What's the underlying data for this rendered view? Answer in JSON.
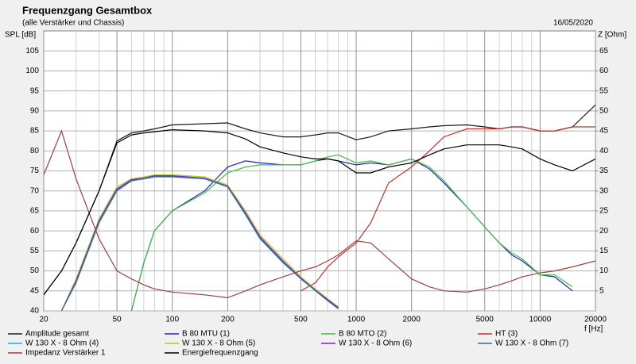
{
  "chart_data": {
    "type": "line",
    "title": "Frequenzgang Gesamtbox",
    "subtitle": "(alle Verstärker und Chassis)",
    "date": "16/05/2020",
    "ylabel": "SPL [dB]",
    "y2label": "Z [Ohm]",
    "xlabel": "f [Hz]",
    "xscale": "log",
    "grid": true,
    "xlim": [
      20,
      20000
    ],
    "xticks": [
      20,
      50,
      100,
      200,
      500,
      1000,
      2000,
      5000,
      10000,
      20000
    ],
    "xminorticks": [
      30,
      40,
      60,
      70,
      80,
      90,
      300,
      400,
      600,
      700,
      800,
      900,
      3000,
      4000,
      6000,
      7000,
      8000,
      9000
    ],
    "ylim": [
      40,
      110
    ],
    "yticks": [
      40,
      45,
      50,
      55,
      60,
      65,
      70,
      75,
      80,
      85,
      90,
      95,
      100,
      105
    ],
    "y2lim": [
      0,
      70
    ],
    "y2ticks": [
      5,
      10,
      15,
      20,
      25,
      30,
      35,
      40,
      45,
      50,
      55,
      60,
      65
    ],
    "x": [
      20,
      25,
      30,
      40,
      50,
      60,
      70,
      80,
      100,
      150,
      200,
      250,
      300,
      400,
      500,
      600,
      700,
      800,
      1000,
      1200,
      1500,
      2000,
      2500,
      3000,
      4000,
      5000,
      6000,
      7000,
      8000,
      10000,
      12000,
      15000,
      20000
    ],
    "series": [
      {
        "name": "Amplitude gesamt",
        "color": "#1a1a1a",
        "values": [
          44,
          50,
          57,
          70,
          82.5,
          84.5,
          85,
          85.5,
          86.5,
          86.8,
          87,
          85.5,
          84.5,
          83.5,
          83.5,
          84,
          84.5,
          84.5,
          82.8,
          83.5,
          85,
          85.5,
          86,
          86.3,
          86.5,
          86,
          85.5,
          86,
          86,
          85,
          85,
          86,
          91.5
        ]
      },
      {
        "name": "B 80 MTU (1)",
        "color": "#2020c0",
        "values": [
          null,
          null,
          null,
          null,
          null,
          40,
          52,
          60,
          65,
          70,
          76,
          77.5,
          77,
          76.5,
          76.5,
          77.5,
          78,
          77.5,
          76.5,
          77,
          76.5,
          78,
          75.5,
          72,
          66,
          61,
          57,
          54,
          52.5,
          49,
          48.5,
          45,
          null
        ]
      },
      {
        "name": "B 80 MTO (2)",
        "color": "#40c040",
        "values": [
          null,
          null,
          null,
          null,
          null,
          40,
          52,
          60,
          65,
          69.5,
          74.5,
          76,
          76.5,
          76.5,
          76.5,
          77.5,
          78.5,
          79,
          77,
          77.5,
          76.5,
          78,
          76,
          72.5,
          66,
          61,
          57,
          54.5,
          53,
          49,
          49,
          46,
          null
        ]
      },
      {
        "name": "HT (3)",
        "color": "#c03030",
        "values": [
          null,
          null,
          null,
          null,
          null,
          null,
          null,
          null,
          null,
          null,
          null,
          null,
          null,
          null,
          45,
          47,
          51,
          53.5,
          57,
          62,
          72,
          76,
          80,
          83.5,
          85.5,
          85.5,
          85.5,
          86,
          86,
          85,
          85,
          86,
          86
        ]
      },
      {
        "name": "W 130 X - 8 Ohm (4)",
        "color": "#20b0c0",
        "values": [
          null,
          40,
          47,
          62,
          70,
          72.5,
          73,
          73.5,
          73.5,
          73,
          71,
          64,
          58,
          52,
          48,
          45,
          42.5,
          40.5,
          null,
          null,
          null,
          null,
          null,
          null,
          null,
          null,
          null,
          null,
          null,
          null,
          null,
          null,
          null
        ]
      },
      {
        "name": "W 130 X - 8 Ohm (5)",
        "color": "#c0c020",
        "values": [
          null,
          40,
          48,
          63,
          71,
          73,
          73.5,
          74,
          74,
          73.5,
          71.5,
          65,
          59,
          53,
          48.5,
          45.5,
          43,
          41,
          null,
          null,
          null,
          null,
          null,
          null,
          null,
          null,
          null,
          null,
          null,
          null,
          null,
          null,
          null
        ]
      },
      {
        "name": "W 130 X - 8 Ohm (6)",
        "color": "#8020c0",
        "values": [
          null,
          40,
          47.5,
          62.5,
          70.5,
          72.8,
          73.2,
          73.8,
          73.8,
          73.2,
          71.2,
          64.5,
          58.5,
          52.5,
          48.2,
          45.2,
          42.8,
          40.8,
          null,
          null,
          null,
          null,
          null,
          null,
          null,
          null,
          null,
          null,
          null,
          null,
          null,
          null,
          null
        ]
      },
      {
        "name": "W 130 X - 8 Ohm (7)",
        "color": "#4060a0",
        "values": [
          null,
          40,
          47.2,
          62.2,
          70.2,
          72.6,
          73.1,
          73.6,
          73.6,
          73.1,
          71.1,
          64.2,
          58.2,
          52.2,
          48.1,
          45.1,
          42.6,
          40.6,
          null,
          null,
          null,
          null,
          null,
          null,
          null,
          null,
          null,
          null,
          null,
          null,
          null,
          null,
          null
        ]
      },
      {
        "name": "Impedanz Verstärker 1",
        "color": "#a04040",
        "axis": "y2",
        "values": [
          34,
          45,
          33,
          18,
          10,
          8,
          6.5,
          5.5,
          4.7,
          4,
          3.3,
          5,
          6.5,
          8.5,
          10,
          11,
          12.5,
          14,
          17.5,
          17,
          13,
          8,
          6,
          5,
          4.7,
          5.5,
          6.5,
          7.5,
          8.5,
          9.5,
          10,
          11,
          12.5
        ]
      },
      {
        "name": "Energiefrequenzgang",
        "color": "#000000",
        "values": [
          44,
          50,
          57,
          70,
          82,
          84,
          84.5,
          84.8,
          85.3,
          85,
          84.5,
          83,
          81,
          79.5,
          78.5,
          78,
          78,
          77.5,
          74.5,
          74.5,
          76,
          77,
          79,
          80.5,
          81.5,
          81.5,
          81.5,
          81,
          80.5,
          78,
          76.5,
          75,
          78
        ]
      }
    ]
  }
}
